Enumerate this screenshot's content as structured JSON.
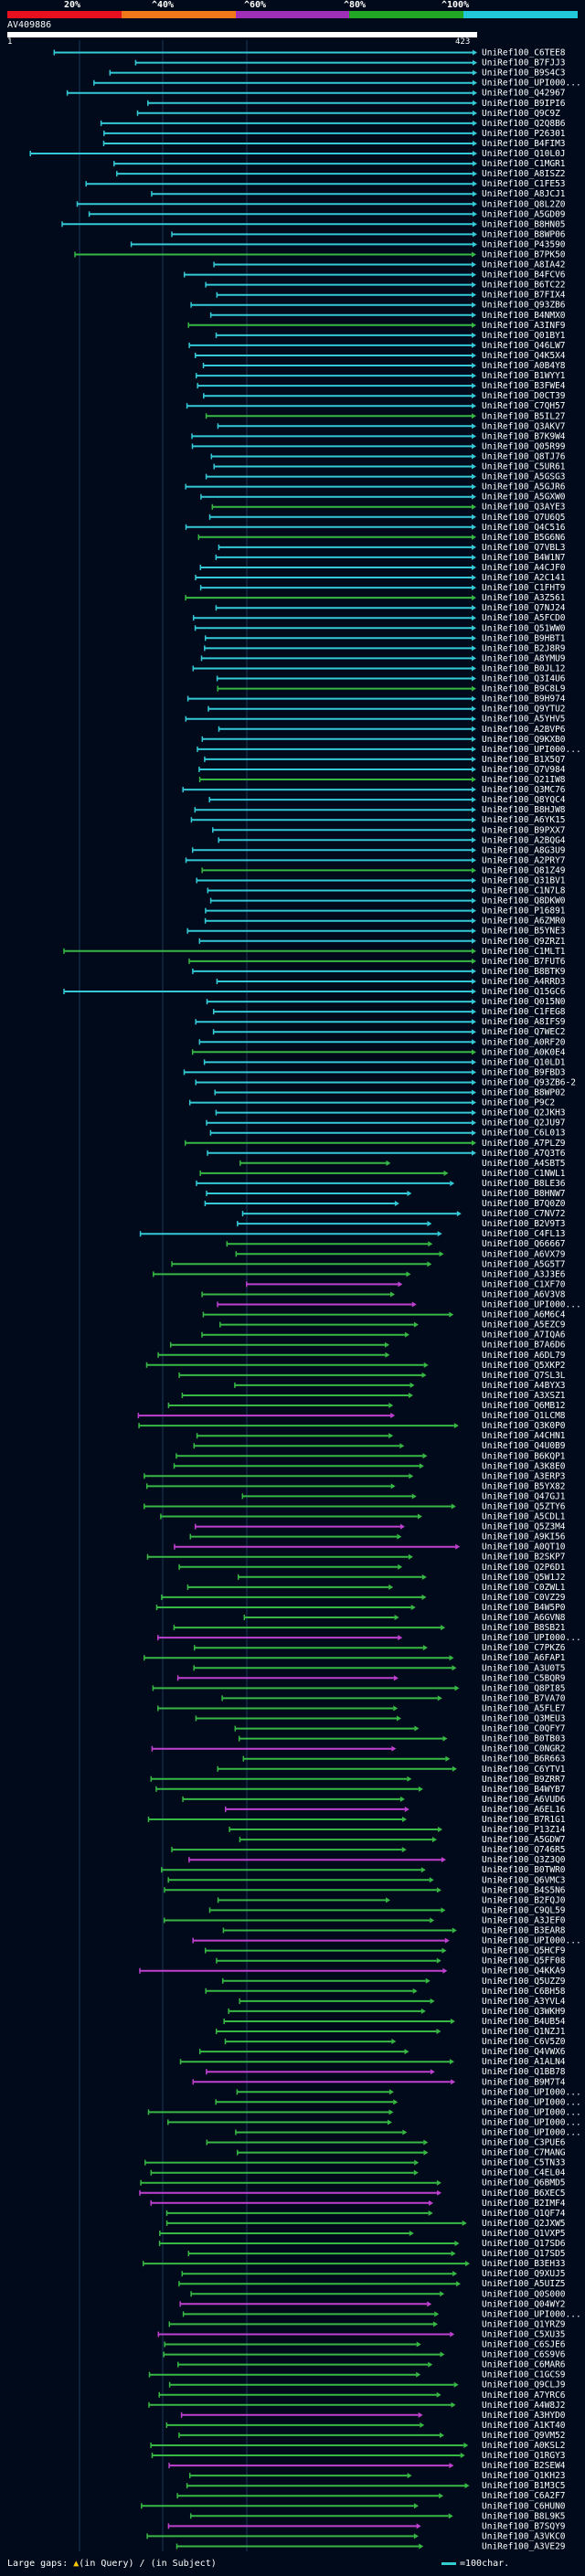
{
  "scale": {
    "labels": [
      "20%",
      "^40%",
      "^60%",
      "^80%",
      "^100%"
    ],
    "colors": [
      "#e8101e",
      "#f07818",
      "#9f2fb8",
      "#22a822",
      "#20c8d8"
    ]
  },
  "query": {
    "id": "AV409886",
    "start": "1",
    "end": "423"
  },
  "colors": {
    "cyan": "#33c9d6",
    "green": "#37b844",
    "magenta": "#c040d0",
    "grid": "#1a3a5a"
  },
  "hits": [
    "UniRef100_C6TEE8",
    "UniRef100_B7FJJ3",
    "UniRef100_B9S4C3",
    "UniRef100_UPI000...",
    "UniRef100_Q42967",
    "UniRef100_B9IPI6",
    "UniRef100_Q9C9Z",
    "UniRef100_Q2Q8B6",
    "UniRef100_P26301",
    "UniRef100_B4FIM3",
    "UniRef100_Q10L0J",
    "UniRef100_C1MGR1",
    "UniRef100_A8ISZ2",
    "UniRef100_C1FE53",
    "UniRef100_A8JCJ1",
    "UniRef100_Q8L2Z0",
    "UniRef100_A5GD09",
    "UniRef100_B8HN05",
    "UniRef100_B8WP06",
    "UniRef100_P43590",
    "UniRef100_B7PK50",
    "UniRef100_A8IA42",
    "UniRef100_B4FCV6",
    "UniRef100_B6TC22",
    "UniRef100_B7FIX4",
    "UniRef100_Q93ZB6",
    "UniRef100_B4NMX0",
    "UniRef100_A3INF9",
    "UniRef100_Q01BY1",
    "UniRef100_Q46LW7",
    "UniRef100_Q4K5X4",
    "UniRef100_A0B4Y8",
    "UniRef100_B1WYY1",
    "UniRef100_B3FWE4",
    "UniRef100_D0CT39",
    "UniRef100_C7QH57",
    "UniRef100_B5IL27",
    "UniRef100_Q3AKV7",
    "UniRef100_B7K9W4",
    "UniRef100_Q05R99",
    "UniRef100_Q8TJ76",
    "UniRef100_C5UR61",
    "UniRef100_A5GSG3",
    "UniRef100_A5GJR6",
    "UniRef100_A5GXW0",
    "UniRef100_Q3AYE3",
    "UniRef100_Q7U6Q5",
    "UniRef100_Q4C516",
    "UniRef100_B5G6N6",
    "UniRef100_Q7VBL3",
    "UniRef100_B4W1N7",
    "UniRef100_A4CJF0",
    "UniRef100_A2C141",
    "UniRef100_C1FHT9",
    "UniRef100_A3Z561",
    "UniRef100_Q7NJ24",
    "UniRef100_A5FCD0",
    "UniRef100_Q51WW0",
    "UniRef100_B9HBT1",
    "UniRef100_B2J8R9",
    "UniRef100_A8YMU9",
    "UniRef100_B0JL12",
    "UniRef100_Q3I4U6",
    "UniRef100_B9C8L9",
    "UniRef100_B9H974",
    "UniRef100_Q9YTU2",
    "UniRef100_A5YHV5",
    "UniRef100_A2BVP6",
    "UniRef100_Q9KXB0",
    "UniRef100_UPI000...",
    "UniRef100_B1X5Q7",
    "UniRef100_Q7V984",
    "UniRef100_Q21IW8",
    "UniRef100_Q3MC76",
    "UniRef100_Q8YQC4",
    "UniRef100_B8HJW8",
    "UniRef100_A6YK15",
    "UniRef100_B9PXX7",
    "UniRef100_A2BQG4",
    "UniRef100_A8G3U9",
    "UniRef100_A2PRY7",
    "UniRef100_Q81Z49",
    "UniRef100_Q31BV1",
    "UniRef100_C1N7L8",
    "UniRef100_Q8DKW0",
    "UniRef100_P16891",
    "UniRef100_A6ZMR0",
    "UniRef100_B5YNE3",
    "UniRef100_Q9ZRZ1",
    "UniRef100_C1MLT1",
    "UniRef100_B7FUT6",
    "UniRef100_B8BTK9",
    "UniRef100_A4RRD3",
    "UniRef100_Q15GC6",
    "UniRef100_Q015N0",
    "UniRef100_C1FEG8",
    "UniRef100_A8IFS9",
    "UniRef100_Q7WEC2",
    "UniRef100_A0RF20",
    "UniRef100_A0K0E4",
    "UniRef100_Q10LD1",
    "UniRef100_B9FBD3",
    "UniRef100_Q93ZB6-2",
    "UniRef100_B8WP02",
    "UniRef100_P9C2",
    "UniRef100_Q2JKH3",
    "UniRef100_Q2JU97",
    "UniRef100_C6L013",
    "UniRef100_A7PLZ9",
    "UniRef100_A7Q3T6",
    "UniRef100_A4SBT5",
    "UniRef100_C1NWL1",
    "UniRef100_B8LE36",
    "UniRef100_B8HNW7",
    "UniRef100_B7Q0Z0",
    "UniRef100_C7NV72",
    "UniRef100_B2V9T3",
    "UniRef100_C4FL13",
    "UniRef100_Q66667",
    "UniRef100_A6VX79",
    "UniRef100_A5G5T7",
    "UniRef100_A3J3E6",
    "UniRef100_C1XF70",
    "UniRef100_A6V3V8",
    "UniRef100_UPI000...",
    "UniRef100_A6M6C4",
    "UniRef100_A5EZC9",
    "UniRef100_A7IQA6",
    "UniRef100_B7A6D6",
    "UniRef100_A6DL79",
    "UniRef100_Q5XKP2",
    "UniRef100_Q7SL3L",
    "UniRef100_A4BYX3",
    "UniRef100_A3XSZ1",
    "UniRef100_Q6MB12",
    "UniRef100_Q1LCM8",
    "UniRef100_Q3K0P0",
    "UniRef100_A4CHN1",
    "UniRef100_Q4U0B9",
    "UniRef100_B6KQP1",
    "UniRef100_A3K8E0",
    "UniRef100_A3ERP3",
    "UniRef100_B5YX82",
    "UniRef100_Q47GJ1",
    "UniRef100_Q5ZTY6",
    "UniRef100_A5CDL1",
    "UniRef100_Q5Z3M4",
    "UniRef100_A9KI56",
    "UniRef100_A0QT10",
    "UniRef100_B2SKP7",
    "UniRef100_Q2P6D1",
    "UniRef100_Q5W1J2",
    "UniRef100_C0ZWL1",
    "UniRef100_C0VZ29",
    "UniRef100_B4W5P0",
    "UniRef100_A6GVN8",
    "UniRef100_B8SB21",
    "UniRef100_UPI000...",
    "UniRef100_C7PKZ6",
    "UniRef100_A6FAP1",
    "UniRef100_A3U0T5",
    "UniRef100_C5BQR9",
    "UniRef100_Q8PI85",
    "UniRef100_B7VA70",
    "UniRef100_A5FLE7",
    "UniRef100_Q3MEU3",
    "UniRef100_C0QFY7",
    "UniRef100_B0TB03",
    "UniRef100_C0NGR2",
    "UniRef100_B6R663",
    "UniRef100_C6YTV1",
    "UniRef100_B9ZRR7",
    "UniRef100_B4WYB7",
    "UniRef100_A6VUD6",
    "UniRef100_A6EL16",
    "UniRef100_B7R1G1",
    "UniRef100_P13Z14",
    "UniRef100_A5GDW7",
    "UniRef100_Q746R5",
    "UniRef100_Q3Z3Q0",
    "UniRef100_B0TWR0",
    "UniRef100_Q6VMC3",
    "UniRef100_B4S5N6",
    "UniRef100_B2FQJ0",
    "UniRef100_C9QL59",
    "UniRef100_A3JEF0",
    "UniRef100_B3EAR8",
    "UniRef100_UPI000...",
    "UniRef100_Q5HCF9",
    "UniRef100_Q5FF08",
    "UniRef100_Q4KKA9",
    "UniRef100_Q5UZZ9",
    "UniRef100_C6BH58",
    "UniRef100_A3YVL4",
    "UniRef100_Q3WKH9",
    "UniRef100_B4UB54",
    "UniRef100_Q1NZJ1",
    "UniRef100_C6V5Z0",
    "UniRef100_Q4VWX6",
    "UniRef100_A1ALN4",
    "UniRef100_Q1BB78",
    "UniRef100_B9M7T4",
    "UniRef100_UPI000...",
    "UniRef100_UPI000...",
    "UniRef100_UPI000...",
    "UniRef100_UPI000...",
    "UniRef100_UPI000...",
    "UniRef100_C3PUE6",
    "UniRef100_C7MANG",
    "UniRef100_C5TN33",
    "UniRef100_C4EL04",
    "UniRef100_Q6BMD5",
    "UniRef100_B6XEC5",
    "UniRef100_B2IMF4",
    "UniRef100_Q1QF74",
    "UniRef100_Q2JXW5",
    "UniRef100_Q1VXP5",
    "UniRef100_Q17SD6",
    "UniRef100_Q17SD5",
    "UniRef100_B3EH33",
    "UniRef100_Q9XUJ5",
    "UniRef100_A5UIZ5",
    "UniRef100_Q0S000",
    "UniRef100_Q04WY2",
    "UniRef100_UPI000...",
    "UniRef100_Q1YRZ9",
    "UniRef100_C5XU35",
    "UniRef100_C6SJE6",
    "UniRef100_C6S9V6",
    "UniRef100_C6MAR6",
    "UniRef100_C1GCS9",
    "UniRef100_Q9CLJ9",
    "UniRef100_A7YRC6",
    "UniRef100_A4W8J2",
    "UniRef100_A3HYD0",
    "UniRef100_A1KT40",
    "UniRef100_Q9VM52",
    "UniRef100_A0KSL2",
    "UniRef100_Q1RGY3",
    "UniRef100_B2SEW4",
    "UniRef100_Q1KH23",
    "UniRef100_B1M3C5",
    "UniRef100_C6A2F7",
    "UniRef100_C6HUN0",
    "UniRef100_B8L9K5",
    "UniRef100_B7SQY9",
    "UniRef100_A3VKC0",
    "UniRef100_A3VE29"
  ],
  "legend": {
    "gaps_label": "Large gaps: ",
    "gap_marker": "▲",
    "gap_query": "(in Query)",
    "gap_sep": " / ",
    "gap_subject": "(in Subject)",
    "scale_text": "=100char."
  }
}
